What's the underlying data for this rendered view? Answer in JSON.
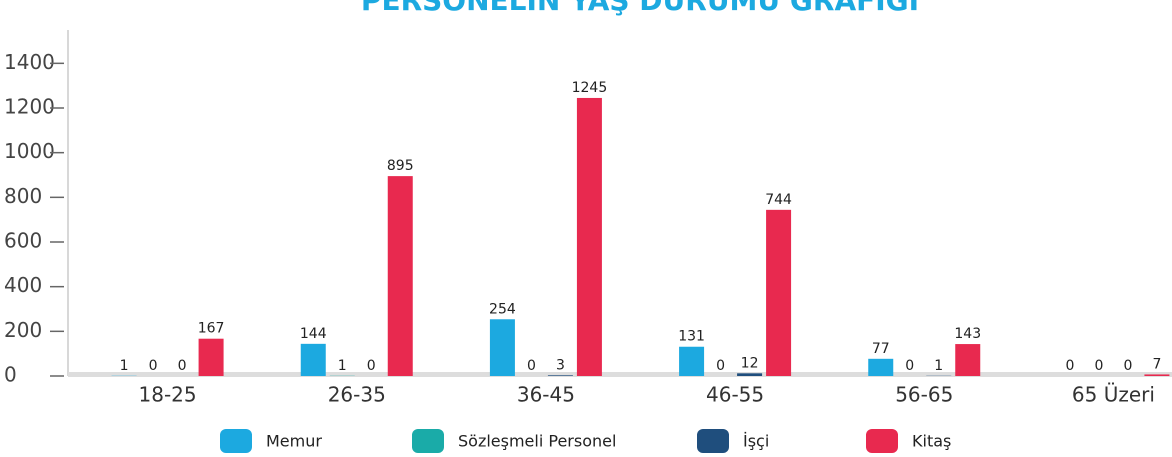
{
  "chart_data": {
    "type": "bar",
    "title": "PERSONELİN YAŞ DURUMU GRAFİĞİ",
    "categories": [
      "18-25",
      "26-35",
      "36-45",
      "46-55",
      "56-65",
      "65 Üzeri"
    ],
    "series": [
      {
        "name": "Memur",
        "color": "#1ca9e0",
        "values": [
          1,
          144,
          254,
          131,
          77,
          0
        ]
      },
      {
        "name": "Sözleşmeli Personel",
        "color": "#1aaba8",
        "values": [
          0,
          1,
          0,
          0,
          0,
          0
        ]
      },
      {
        "name": "İşçi",
        "color": "#1f4e7d",
        "values": [
          0,
          0,
          3,
          12,
          1,
          0
        ]
      },
      {
        "name": "Kitaş",
        "color": "#e8294f",
        "values": [
          167,
          895,
          1245,
          744,
          143,
          7
        ]
      }
    ],
    "ylim": [
      0,
      1500
    ],
    "yticks": [
      0,
      200,
      400,
      600,
      800,
      1000,
      1200,
      1400
    ],
    "legend": "bottom"
  }
}
